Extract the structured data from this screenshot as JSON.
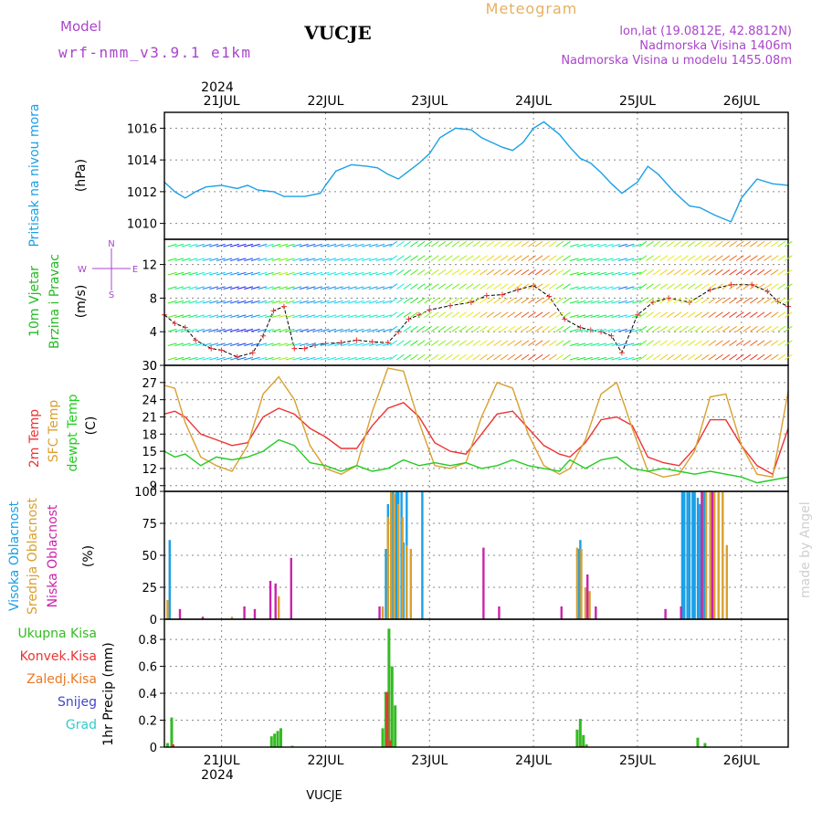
{
  "header": {
    "model_label": "Model",
    "model_value": "wrf-nmm_v3.9.1 e1km",
    "location": "VUCJE",
    "product": "Meteogram",
    "coords": "lon,lat (19.0812E, 42.8812N)",
    "elevation": "Nadmorska Visina 1406m",
    "model_elevation": "Nadmorska Visina u modelu 1455.08m",
    "footer": "VUCJE",
    "credit": "made by Angel"
  },
  "colors": {
    "pressure": "#1aa0e6",
    "wind_label": "#22bb22",
    "temp2m": "#ee3333",
    "sfc": "#d9a030",
    "dewpt": "#22cc22",
    "high_cloud": "#1aa0e6",
    "mid_cloud": "#d9a030",
    "low_cloud": "#cc22aa",
    "total_rain": "#33bb22",
    "conv_rain": "#ee3333",
    "freezing": "#ee7722",
    "snow": "#4444cc",
    "hail": "#33cccc",
    "compass": "#aa44cc",
    "axis": "#000000",
    "grid": "#888888"
  },
  "time_axis": {
    "year": "2024",
    "days": [
      "21JUL",
      "22JUL",
      "23JUL",
      "24JUL",
      "25JUL",
      "26JUL"
    ]
  },
  "panels": {
    "pressure": {
      "label_line1": "Pritisak na nivou mora",
      "unit": "(hPa)"
    },
    "wind": {
      "label_line1": "10m Vjetar",
      "label_line2": "Brzina i Pravac",
      "unit": "(m/s)",
      "compass": {
        "n": "N",
        "s": "S",
        "e": "E",
        "w": "W"
      }
    },
    "temp": {
      "label_2m": "2m Temp",
      "label_sfc": "SFC Temp",
      "label_dew": "dewpt Temp",
      "unit": "(C)"
    },
    "cloud": {
      "label_high": "Visoka Oblacnost",
      "label_mid": "Srednja Oblacnost",
      "label_low": "Niska Oblacnost",
      "unit": "(%)"
    },
    "precip": {
      "label_total": "Ukupna Kisa",
      "label_conv": "Konvek.Kisa",
      "label_freeze": "Zaledj.Kisa",
      "label_snow": "Snijeg",
      "label_hail": "Grad",
      "axis_label": "1hr Precip (mm)"
    }
  },
  "chart_data": [
    {
      "type": "line",
      "title": "Pritisak na nivou mora",
      "ylabel": "(hPa)",
      "ylim": [
        1009,
        1017
      ],
      "yticks": [
        1010,
        1012,
        1014,
        1016
      ],
      "x_unit": "days since 21JUL 00:00",
      "xlim": [
        -0.55,
        5.45
      ],
      "grid": true,
      "series": [
        {
          "name": "Pritisak na nivou mora",
          "x": [
            -0.55,
            -0.45,
            -0.35,
            -0.25,
            -0.15,
            0.0,
            0.15,
            0.25,
            0.35,
            0.5,
            0.6,
            0.7,
            0.8,
            0.95,
            1.0,
            1.1,
            1.25,
            1.4,
            1.5,
            1.6,
            1.7,
            1.8,
            1.9,
            2.0,
            2.1,
            2.25,
            2.4,
            2.5,
            2.6,
            2.7,
            2.8,
            2.9,
            3.0,
            3.1,
            3.25,
            3.35,
            3.45,
            3.55,
            3.65,
            3.75,
            3.85,
            4.0,
            4.1,
            4.2,
            4.35,
            4.5,
            4.6,
            4.75,
            4.9,
            5.0,
            5.15,
            5.3,
            5.45
          ],
          "y": [
            1012.6,
            1012.0,
            1011.6,
            1012.0,
            1012.3,
            1012.4,
            1012.2,
            1012.4,
            1012.1,
            1012.0,
            1011.7,
            1011.7,
            1011.7,
            1011.9,
            1012.4,
            1013.3,
            1013.7,
            1013.6,
            1013.5,
            1013.1,
            1012.8,
            1013.3,
            1013.8,
            1014.4,
            1015.4,
            1016.0,
            1015.9,
            1015.4,
            1015.1,
            1014.8,
            1014.6,
            1015.1,
            1016.0,
            1016.4,
            1015.6,
            1014.8,
            1014.1,
            1013.8,
            1013.2,
            1012.5,
            1011.9,
            1012.6,
            1013.6,
            1013.1,
            1012.0,
            1011.1,
            1011.0,
            1010.5,
            1010.1,
            1011.6,
            1012.8,
            1012.5,
            1012.4
          ]
        }
      ]
    },
    {
      "type": "line",
      "title": "10m Vjetar Brzina i Pravac",
      "ylabel": "(m/s)",
      "ylim": [
        0,
        15
      ],
      "yticks": [
        0,
        4,
        8,
        12
      ],
      "x_unit": "days since 21JUL 00:00",
      "xlim": [
        -0.55,
        5.45
      ],
      "grid": true,
      "series": [
        {
          "name": "10m Vjetar",
          "x": [
            -0.55,
            -0.45,
            -0.35,
            -0.25,
            -0.1,
            0.0,
            0.15,
            0.3,
            0.4,
            0.5,
            0.6,
            0.7,
            0.8,
            0.9,
            1.0,
            1.15,
            1.3,
            1.45,
            1.6,
            1.7,
            1.8,
            1.9,
            2.0,
            2.2,
            2.4,
            2.55,
            2.7,
            2.85,
            3.0,
            3.15,
            3.3,
            3.45,
            3.55,
            3.65,
            3.75,
            3.85,
            4.0,
            4.15,
            4.3,
            4.5,
            4.7,
            4.9,
            5.1,
            5.25,
            5.35,
            5.45
          ],
          "y": [
            6.0,
            5.0,
            4.5,
            3.0,
            2.0,
            1.8,
            1.0,
            1.5,
            3.5,
            6.5,
            7.0,
            2.0,
            2.0,
            2.4,
            2.6,
            2.7,
            3.0,
            2.8,
            2.7,
            4.0,
            5.5,
            6.0,
            6.6,
            7.1,
            7.5,
            8.3,
            8.4,
            9.0,
            9.5,
            8.2,
            5.5,
            4.5,
            4.2,
            4.0,
            3.5,
            1.5,
            6.0,
            7.5,
            8.0,
            7.5,
            9.0,
            9.6,
            9.6,
            8.8,
            7.6,
            7.0
          ]
        }
      ]
    },
    {
      "type": "line",
      "title": "2m Temp / SFC Temp / dewpt Temp",
      "ylabel": "(C)",
      "ylim": [
        8,
        30
      ],
      "yticks": [
        9,
        12,
        15,
        18,
        21,
        24,
        27,
        30
      ],
      "x_unit": "days since 21JUL 00:00",
      "xlim": [
        -0.55,
        5.45
      ],
      "grid": true,
      "series": [
        {
          "name": "2m Temp",
          "x": [
            -0.55,
            -0.45,
            -0.35,
            -0.2,
            -0.05,
            0.1,
            0.25,
            0.4,
            0.55,
            0.7,
            0.85,
            1.0,
            1.15,
            1.3,
            1.45,
            1.6,
            1.75,
            1.9,
            2.05,
            2.2,
            2.35,
            2.5,
            2.65,
            2.8,
            2.95,
            3.1,
            3.25,
            3.35,
            3.5,
            3.65,
            3.8,
            3.95,
            4.1,
            4.25,
            4.4,
            4.55,
            4.7,
            4.85,
            5.0,
            5.15,
            5.3,
            5.45
          ],
          "y": [
            21.5,
            22.0,
            21.0,
            18.0,
            17.0,
            16.0,
            16.5,
            21.0,
            22.5,
            21.5,
            19.0,
            17.5,
            15.5,
            15.5,
            19.5,
            22.5,
            23.5,
            21.0,
            16.5,
            15.0,
            14.5,
            18.0,
            21.5,
            22.0,
            19.0,
            16.0,
            14.5,
            14.0,
            16.5,
            20.5,
            21.0,
            19.5,
            14.0,
            13.0,
            12.5,
            15.5,
            20.5,
            20.5,
            16.0,
            12.5,
            11.0,
            19.0
          ]
        },
        {
          "name": "SFC Temp",
          "x": [
            -0.55,
            -0.45,
            -0.35,
            -0.2,
            -0.05,
            0.1,
            0.25,
            0.4,
            0.55,
            0.7,
            0.85,
            1.0,
            1.15,
            1.3,
            1.45,
            1.6,
            1.75,
            1.9,
            2.05,
            2.2,
            2.35,
            2.5,
            2.65,
            2.8,
            2.95,
            3.1,
            3.25,
            3.35,
            3.5,
            3.65,
            3.8,
            3.95,
            4.1,
            4.25,
            4.4,
            4.55,
            4.7,
            4.85,
            5.0,
            5.15,
            5.3,
            5.45
          ],
          "y": [
            26.5,
            26.0,
            20.0,
            14.0,
            12.5,
            11.5,
            16.0,
            25.0,
            28.0,
            24.0,
            16.0,
            12.0,
            11.0,
            12.5,
            22.0,
            29.5,
            29.0,
            20.0,
            12.5,
            12.0,
            13.0,
            21.0,
            27.0,
            26.0,
            18.0,
            12.5,
            11.0,
            12.0,
            17.0,
            25.0,
            27.0,
            19.0,
            11.5,
            10.5,
            11.0,
            15.0,
            24.5,
            25.0,
            16.0,
            11.0,
            10.5,
            25.5
          ]
        },
        {
          "name": "dewpt Temp",
          "x": [
            -0.55,
            -0.45,
            -0.35,
            -0.2,
            -0.05,
            0.1,
            0.25,
            0.4,
            0.55,
            0.7,
            0.85,
            1.0,
            1.15,
            1.3,
            1.45,
            1.6,
            1.75,
            1.9,
            2.05,
            2.2,
            2.35,
            2.5,
            2.65,
            2.8,
            2.95,
            3.1,
            3.25,
            3.35,
            3.5,
            3.65,
            3.8,
            3.95,
            4.1,
            4.25,
            4.4,
            4.55,
            4.7,
            4.85,
            5.0,
            5.15,
            5.3,
            5.45
          ],
          "y": [
            15.0,
            14.0,
            14.5,
            12.5,
            14.0,
            13.5,
            14.0,
            15.0,
            17.0,
            16.0,
            13.0,
            12.5,
            11.5,
            12.5,
            11.5,
            12.0,
            13.5,
            12.5,
            13.0,
            12.5,
            13.0,
            12.0,
            12.5,
            13.5,
            12.5,
            12.0,
            11.5,
            13.5,
            12.0,
            13.5,
            14.0,
            12.0,
            11.5,
            12.0,
            11.5,
            11.0,
            11.5,
            11.0,
            10.5,
            9.5,
            10.0,
            10.5
          ]
        }
      ]
    },
    {
      "type": "bar",
      "title": "Visoka / Srednja / Niska Oblacnost",
      "ylabel": "(%)",
      "ylim": [
        0,
        100
      ],
      "yticks": [
        0,
        25,
        50,
        75,
        100
      ],
      "x_unit": "days since 21JUL 00:00",
      "xlim": [
        -0.55,
        5.45
      ],
      "grid": true,
      "series": [
        {
          "name": "Visoka Oblacnost",
          "x": [
            -0.48,
            1.6,
            1.62,
            1.65,
            1.67,
            1.7,
            1.72,
            1.75,
            1.77,
            1.8,
            1.95,
            3.45,
            3.47,
            4.45,
            4.47,
            4.5,
            4.52,
            4.55,
            4.57,
            4.6,
            4.62,
            4.65,
            4.67
          ],
          "y": [
            62,
            55,
            90,
            100,
            100,
            100,
            100,
            100,
            60,
            100,
            100,
            55,
            62,
            100,
            100,
            100,
            100,
            100,
            100,
            95,
            90,
            100,
            100
          ]
        },
        {
          "name": "Srednja Oblacnost",
          "x": [
            -0.52,
            0.1,
            0.55,
            1.55,
            1.6,
            1.63,
            1.66,
            1.7,
            1.74,
            1.78,
            1.82,
            3.42,
            3.46,
            3.5,
            3.54,
            4.62,
            4.66,
            4.7,
            4.74,
            4.78,
            4.82,
            4.86
          ],
          "y": [
            15,
            2,
            18,
            10,
            80,
            100,
            98,
            90,
            80,
            58,
            55,
            56,
            55,
            25,
            22,
            100,
            100,
            100,
            100,
            100,
            100,
            58
          ]
        },
        {
          "name": "Niska Oblacnost",
          "x": [
            -0.42,
            -0.2,
            0.2,
            0.3,
            0.45,
            0.5,
            0.65,
            1.5,
            2.5,
            2.65,
            3.25,
            3.5,
            3.58,
            4.25,
            4.4,
            4.6,
            4.7
          ],
          "y": [
            8,
            2,
            10,
            8,
            30,
            28,
            48,
            10,
            56,
            10,
            10,
            35,
            10,
            8,
            10,
            100,
            100
          ]
        }
      ]
    },
    {
      "type": "bar",
      "title": "1hr Precip",
      "ylabel": "1hr Precip (mm)",
      "ylim": [
        0,
        0.95
      ],
      "yticks": [
        0,
        0.2,
        0.4,
        0.6,
        0.8
      ],
      "x_unit": "days since 21JUL 00:00",
      "xlim": [
        -0.55,
        5.45
      ],
      "grid": true,
      "series": [
        {
          "name": "Ukupna Kisa",
          "x": [
            -0.52,
            -0.48,
            0.48,
            0.51,
            0.54,
            0.57,
            0.68,
            1.55,
            1.58,
            1.61,
            1.64,
            1.67,
            3.42,
            3.45,
            3.48,
            3.51,
            4.58,
            4.65
          ],
          "y": [
            0.03,
            0.22,
            0.08,
            0.1,
            0.12,
            0.14,
            0.01,
            0.14,
            0.41,
            0.88,
            0.6,
            0.31,
            0.13,
            0.21,
            0.09,
            0.02,
            0.07,
            0.03
          ]
        },
        {
          "name": "Konvek.Kisa",
          "x": [
            -0.48,
            1.58,
            1.61,
            3.45
          ],
          "y": [
            0.02,
            0.41,
            0.05,
            0.01
          ]
        }
      ]
    }
  ]
}
